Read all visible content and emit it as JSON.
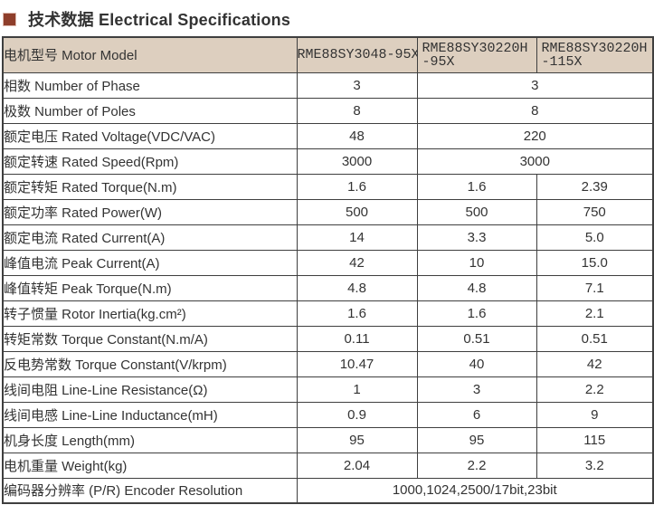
{
  "title": {
    "text": "技术数据 Electrical Specifications",
    "bullet_color": "#8e3e2b"
  },
  "colors": {
    "header_bg": "#ddcfbf",
    "border": "#3f3f3f",
    "text": "#333333"
  },
  "table": {
    "header_label": "电机型号 Motor Model",
    "models": [
      "RME88SY3048-95X",
      "RME88SY30220H-95X",
      "RME88SY30220H-115X"
    ],
    "rows": [
      {
        "label": "相数 Number of Phase",
        "cells": [
          {
            "v": "3",
            "span": 1
          },
          {
            "v": "3",
            "span": 2
          }
        ]
      },
      {
        "label": "极数 Number of Poles",
        "cells": [
          {
            "v": "8",
            "span": 1
          },
          {
            "v": "8",
            "span": 2
          }
        ]
      },
      {
        "label": "额定电压 Rated Voltage(VDC/VAC)",
        "cells": [
          {
            "v": "48",
            "span": 1
          },
          {
            "v": "220",
            "span": 2
          }
        ]
      },
      {
        "label": "额定转速 Rated Speed(Rpm)",
        "cells": [
          {
            "v": "3000",
            "span": 1
          },
          {
            "v": "3000",
            "span": 2
          }
        ]
      },
      {
        "label": "额定转矩 Rated Torque(N.m)",
        "cells": [
          {
            "v": "1.6",
            "span": 1
          },
          {
            "v": "1.6",
            "span": 1
          },
          {
            "v": "2.39",
            "span": 1
          }
        ]
      },
      {
        "label": "额定功率 Rated Power(W)",
        "cells": [
          {
            "v": "500",
            "span": 1
          },
          {
            "v": "500",
            "span": 1
          },
          {
            "v": "750",
            "span": 1
          }
        ]
      },
      {
        "label": "额定电流 Rated Current(A)",
        "cells": [
          {
            "v": "14",
            "span": 1
          },
          {
            "v": "3.3",
            "span": 1
          },
          {
            "v": "5.0",
            "span": 1
          }
        ]
      },
      {
        "label": "峰值电流 Peak Current(A)",
        "cells": [
          {
            "v": "42",
            "span": 1
          },
          {
            "v": "10",
            "span": 1
          },
          {
            "v": "15.0",
            "span": 1
          }
        ]
      },
      {
        "label": "峰值转矩 Peak Torque(N.m)",
        "cells": [
          {
            "v": "4.8",
            "span": 1
          },
          {
            "v": "4.8",
            "span": 1
          },
          {
            "v": "7.1",
            "span": 1
          }
        ]
      },
      {
        "label": "转子惯量 Rotor Inertia(kg.cm²)",
        "cells": [
          {
            "v": "1.6",
            "span": 1
          },
          {
            "v": "1.6",
            "span": 1
          },
          {
            "v": "2.1",
            "span": 1
          }
        ]
      },
      {
        "label": "转矩常数 Torque Constant(N.m/A)",
        "cells": [
          {
            "v": "0.11",
            "span": 1
          },
          {
            "v": "0.51",
            "span": 1
          },
          {
            "v": "0.51",
            "span": 1
          }
        ]
      },
      {
        "label": "反电势常数 Torque Constant(V/krpm)",
        "cells": [
          {
            "v": "10.47",
            "span": 1
          },
          {
            "v": "40",
            "span": 1
          },
          {
            "v": "42",
            "span": 1
          }
        ]
      },
      {
        "label": "线间电阻 Line-Line Resistance(Ω)",
        "cells": [
          {
            "v": "1",
            "span": 1
          },
          {
            "v": "3",
            "span": 1
          },
          {
            "v": "2.2",
            "span": 1
          }
        ]
      },
      {
        "label": "线间电感 Line-Line Inductance(mH)",
        "cells": [
          {
            "v": "0.9",
            "span": 1
          },
          {
            "v": "6",
            "span": 1
          },
          {
            "v": "9",
            "span": 1
          }
        ]
      },
      {
        "label": "机身长度 Length(mm)",
        "cells": [
          {
            "v": "95",
            "span": 1
          },
          {
            "v": "95",
            "span": 1
          },
          {
            "v": "115",
            "span": 1
          }
        ]
      },
      {
        "label": "电机重量 Weight(kg)",
        "cells": [
          {
            "v": "2.04",
            "span": 1
          },
          {
            "v": "2.2",
            "span": 1
          },
          {
            "v": "3.2",
            "span": 1
          }
        ]
      },
      {
        "label": "编码器分辨率 (P/R) Encoder Resolution",
        "cells": [
          {
            "v": "1000,1024,2500/17bit,23bit",
            "span": 3
          }
        ]
      }
    ]
  }
}
